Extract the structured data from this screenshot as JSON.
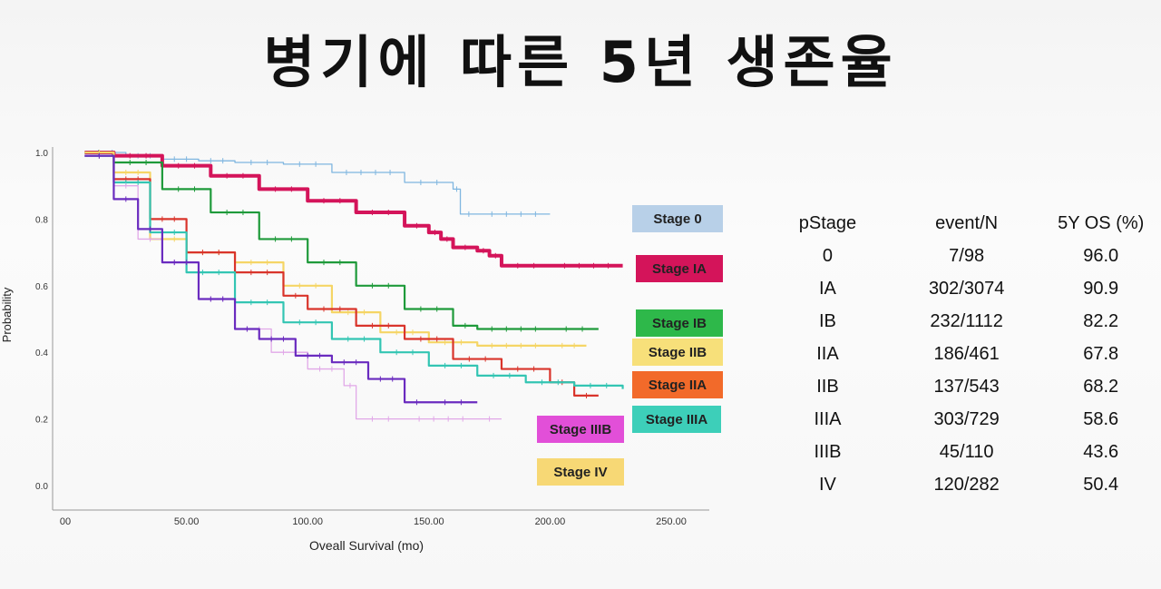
{
  "slide_title": "병기에 따른 5년 생존율",
  "chart_data": {
    "type": "line",
    "xlabel": "Oveall Survival (mo)",
    "ylabel": "Probability",
    "xlim": [
      0,
      250
    ],
    "ylim": [
      0,
      1.0
    ],
    "x_tick_labels": [
      "00",
      "50.00",
      "100.00",
      "150.00",
      "200.00",
      "250.00"
    ],
    "x_ticks": [
      0,
      50,
      100,
      150,
      200,
      250
    ],
    "y_tick_labels": [
      "0.0",
      "0.2",
      "0.4",
      "0.6",
      "0.8",
      "1.0"
    ],
    "y_ticks": [
      0,
      0.2,
      0.4,
      0.6,
      0.8,
      1.0
    ],
    "grid": false,
    "series": [
      {
        "name": "Stage 0",
        "color": "#7fb6e0",
        "x": [
          8,
          25,
          40,
          55,
          70,
          90,
          110,
          140,
          160,
          163,
          170,
          200
        ],
        "y": [
          1.0,
          0.99,
          0.98,
          0.975,
          0.97,
          0.965,
          0.94,
          0.91,
          0.89,
          0.815,
          0.815,
          0.815
        ]
      },
      {
        "name": "Stage IA",
        "color": "#d4145a",
        "x": [
          8,
          20,
          40,
          60,
          80,
          100,
          120,
          140,
          150,
          155,
          160,
          170,
          175,
          180,
          200,
          230
        ],
        "y": [
          1.0,
          0.99,
          0.96,
          0.93,
          0.89,
          0.855,
          0.82,
          0.78,
          0.76,
          0.74,
          0.715,
          0.705,
          0.69,
          0.66,
          0.66,
          0.66
        ]
      },
      {
        "name": "Stage IB",
        "color": "#1e9a3a",
        "x": [
          8,
          20,
          40,
          60,
          80,
          100,
          120,
          140,
          160,
          170,
          200,
          220
        ],
        "y": [
          1.0,
          0.97,
          0.89,
          0.82,
          0.74,
          0.67,
          0.6,
          0.53,
          0.48,
          0.47,
          0.47,
          0.47
        ]
      },
      {
        "name": "Stage IIB",
        "color": "#f5d565",
        "x": [
          8,
          20,
          35,
          50,
          70,
          90,
          110,
          130,
          150,
          170,
          200,
          215
        ],
        "y": [
          1.0,
          0.94,
          0.74,
          0.7,
          0.67,
          0.6,
          0.52,
          0.46,
          0.43,
          0.42,
          0.42,
          0.42
        ]
      },
      {
        "name": "Stage IIA",
        "color": "#d9342b",
        "x": [
          8,
          20,
          35,
          50,
          70,
          90,
          100,
          120,
          140,
          160,
          180,
          200,
          210,
          220
        ],
        "y": [
          0.99,
          0.92,
          0.8,
          0.7,
          0.64,
          0.57,
          0.53,
          0.48,
          0.44,
          0.38,
          0.35,
          0.31,
          0.27,
          0.27
        ]
      },
      {
        "name": "Stage IIIA",
        "color": "#33c5b3",
        "x": [
          8,
          20,
          35,
          50,
          70,
          90,
          110,
          130,
          150,
          170,
          190,
          210,
          230
        ],
        "y": [
          0.99,
          0.91,
          0.76,
          0.64,
          0.55,
          0.49,
          0.44,
          0.4,
          0.36,
          0.33,
          0.31,
          0.3,
          0.29
        ]
      },
      {
        "name": "Stage IIIB",
        "color": "#e1a8e8",
        "x": [
          8,
          20,
          30,
          40,
          55,
          70,
          85,
          100,
          115,
          120,
          140,
          170,
          180
        ],
        "y": [
          0.99,
          0.9,
          0.74,
          0.67,
          0.56,
          0.47,
          0.4,
          0.35,
          0.3,
          0.2,
          0.2,
          0.2,
          0.2
        ]
      },
      {
        "name": "Stage IV",
        "color": "#6a2bbf",
        "x": [
          8,
          20,
          30,
          40,
          55,
          70,
          80,
          95,
          110,
          125,
          140,
          150,
          170
        ],
        "y": [
          0.99,
          0.86,
          0.77,
          0.67,
          0.56,
          0.47,
          0.44,
          0.39,
          0.37,
          0.32,
          0.25,
          0.25,
          0.25
        ]
      }
    ],
    "legend_labels": [
      {
        "text": "Stage 0",
        "bg": "#b8d0e8"
      },
      {
        "text": "Stage IA",
        "bg": "#d4145a"
      },
      {
        "text": "Stage IB",
        "bg": "#2eb84a"
      },
      {
        "text": "Stage IIB",
        "bg": "#f7e07a"
      },
      {
        "text": "Stage IIA",
        "bg": "#f26a2a"
      },
      {
        "text": "Stage IIIA",
        "bg": "#3dcfb9"
      },
      {
        "text": "Stage IIIB",
        "bg": "#e24fd8"
      },
      {
        "text": "Stage IV",
        "bg": "#f7d875"
      }
    ]
  },
  "stats_table": {
    "headers": [
      "pStage",
      "event/N",
      "5Y OS (%)"
    ],
    "rows": [
      [
        "0",
        "7/98",
        "96.0"
      ],
      [
        "IA",
        "302/3074",
        "90.9"
      ],
      [
        "IB",
        "232/1112",
        "82.2"
      ],
      [
        "IIA",
        "186/461",
        "67.8"
      ],
      [
        "IIB",
        "137/543",
        "68.2"
      ],
      [
        "IIIA",
        "303/729",
        "58.6"
      ],
      [
        "IIIB",
        "45/110",
        "43.6"
      ],
      [
        "IV",
        "120/282",
        "50.4"
      ]
    ]
  }
}
